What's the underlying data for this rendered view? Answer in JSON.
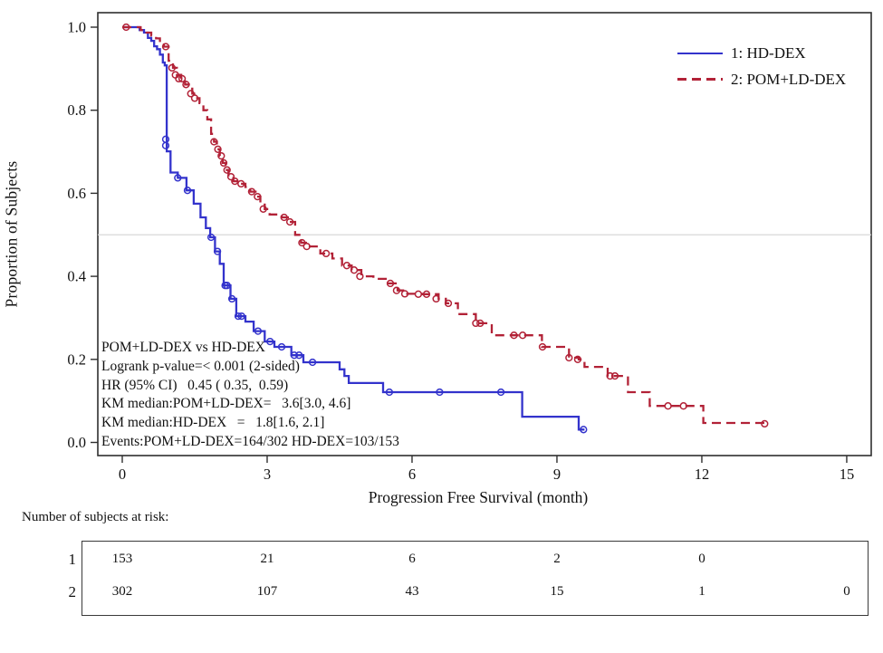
{
  "chart_data": {
    "type": "line",
    "subtype": "kaplan-meier-step",
    "title": "",
    "xlabel": "Progression Free Survival (month)",
    "ylabel": "Proportion of Subjects",
    "xlim": [
      -0.5,
      15.5
    ],
    "ylim": [
      0.0,
      1.0
    ],
    "xticks": [
      "0",
      "3",
      "6",
      "9",
      "12",
      "15"
    ],
    "xtick_values": [
      0,
      3,
      6,
      9,
      12,
      15
    ],
    "yticks": [
      "0.0",
      "0.2",
      "0.4",
      "0.6",
      "0.8",
      "1.0"
    ],
    "ytick_values": [
      0.0,
      0.2,
      0.4,
      0.6,
      0.8,
      1.0
    ],
    "reference_line_y": 0.5,
    "grid": "off",
    "legend_position": "top-right-inside",
    "series": [
      {
        "name": "1: HD-DEX",
        "color": "#3333cc",
        "dash": "solid",
        "end_t": 9.57,
        "steps": [
          [
            0,
            1.0
          ],
          [
            0.3,
            1.0
          ],
          [
            0.36,
            0.993
          ],
          [
            0.45,
            0.987
          ],
          [
            0.53,
            0.974
          ],
          [
            0.6,
            0.967
          ],
          [
            0.66,
            0.954
          ],
          [
            0.72,
            0.947
          ],
          [
            0.78,
            0.934
          ],
          [
            0.84,
            0.915
          ],
          [
            0.88,
            0.908
          ],
          [
            0.92,
            0.701
          ],
          [
            1.0,
            0.65
          ],
          [
            1.15,
            0.637
          ],
          [
            1.33,
            0.607
          ],
          [
            1.48,
            0.575
          ],
          [
            1.62,
            0.542
          ],
          [
            1.73,
            0.516
          ],
          [
            1.82,
            0.494
          ],
          [
            1.92,
            0.46
          ],
          [
            2.02,
            0.43
          ],
          [
            2.1,
            0.378
          ],
          [
            2.24,
            0.346
          ],
          [
            2.36,
            0.304
          ],
          [
            2.55,
            0.291
          ],
          [
            2.72,
            0.268
          ],
          [
            2.95,
            0.243
          ],
          [
            3.15,
            0.23
          ],
          [
            3.5,
            0.21
          ],
          [
            3.75,
            0.193
          ],
          [
            4.5,
            0.176
          ],
          [
            4.6,
            0.16
          ],
          [
            4.69,
            0.143
          ],
          [
            5.4,
            0.121
          ],
          [
            8.28,
            0.062
          ],
          [
            9.45,
            0.031
          ]
        ],
        "censors": [
          [
            0.9,
            0.73
          ],
          [
            0.9,
            0.715
          ],
          [
            1.15,
            0.637
          ],
          [
            1.35,
            0.607
          ],
          [
            1.84,
            0.494
          ],
          [
            1.97,
            0.46
          ],
          [
            2.13,
            0.378
          ],
          [
            2.17,
            0.378
          ],
          [
            2.27,
            0.346
          ],
          [
            2.4,
            0.304
          ],
          [
            2.47,
            0.304
          ],
          [
            2.81,
            0.268
          ],
          [
            3.06,
            0.243
          ],
          [
            3.3,
            0.23
          ],
          [
            3.56,
            0.21
          ],
          [
            3.66,
            0.21
          ],
          [
            3.94,
            0.193
          ],
          [
            5.53,
            0.121
          ],
          [
            6.57,
            0.121
          ],
          [
            7.84,
            0.121
          ],
          [
            9.55,
            0.031
          ]
        ]
      },
      {
        "name": "2: POM+LD-DEX",
        "color": "#b22237",
        "dash": "dashed",
        "end_t": 13.3,
        "steps": [
          [
            0,
            1.0
          ],
          [
            0.32,
            1.0
          ],
          [
            0.38,
            0.993
          ],
          [
            0.5,
            0.987
          ],
          [
            0.6,
            0.98
          ],
          [
            0.7,
            0.973
          ],
          [
            0.78,
            0.963
          ],
          [
            0.86,
            0.953
          ],
          [
            0.96,
            0.919
          ],
          [
            1.05,
            0.902
          ],
          [
            1.13,
            0.885
          ],
          [
            1.22,
            0.876
          ],
          [
            1.3,
            0.862
          ],
          [
            1.38,
            0.852
          ],
          [
            1.45,
            0.84
          ],
          [
            1.52,
            0.829
          ],
          [
            1.6,
            0.817
          ],
          [
            1.68,
            0.8
          ],
          [
            1.76,
            0.778
          ],
          [
            1.84,
            0.743
          ],
          [
            1.9,
            0.724
          ],
          [
            1.96,
            0.706
          ],
          [
            2.02,
            0.69
          ],
          [
            2.08,
            0.673
          ],
          [
            2.14,
            0.656
          ],
          [
            2.2,
            0.64
          ],
          [
            2.3,
            0.629
          ],
          [
            2.42,
            0.623
          ],
          [
            2.55,
            0.615
          ],
          [
            2.65,
            0.604
          ],
          [
            2.76,
            0.592
          ],
          [
            2.86,
            0.576
          ],
          [
            2.95,
            0.562
          ],
          [
            3.05,
            0.549
          ],
          [
            3.3,
            0.542
          ],
          [
            3.45,
            0.531
          ],
          [
            3.58,
            0.5
          ],
          [
            3.7,
            0.481
          ],
          [
            3.85,
            0.472
          ],
          [
            4.1,
            0.455
          ],
          [
            4.35,
            0.443
          ],
          [
            4.55,
            0.426
          ],
          [
            4.75,
            0.415
          ],
          [
            4.95,
            0.4
          ],
          [
            5.2,
            0.394
          ],
          [
            5.5,
            0.383
          ],
          [
            5.7,
            0.366
          ],
          [
            5.9,
            0.358
          ],
          [
            6.2,
            0.357
          ],
          [
            6.55,
            0.346
          ],
          [
            6.7,
            0.335
          ],
          [
            6.95,
            0.309
          ],
          [
            7.32,
            0.287
          ],
          [
            7.65,
            0.258
          ],
          [
            8.69,
            0.23
          ],
          [
            9.25,
            0.204
          ],
          [
            9.45,
            0.2
          ],
          [
            9.57,
            0.182
          ],
          [
            10.05,
            0.16
          ],
          [
            10.47,
            0.121
          ],
          [
            10.92,
            0.088
          ],
          [
            12.03,
            0.047
          ]
        ],
        "censors": [
          [
            0.08,
            1.0
          ],
          [
            0.9,
            0.953
          ],
          [
            1.03,
            0.902
          ],
          [
            1.1,
            0.885
          ],
          [
            1.17,
            0.876
          ],
          [
            1.24,
            0.876
          ],
          [
            1.32,
            0.862
          ],
          [
            1.42,
            0.84
          ],
          [
            1.5,
            0.829
          ],
          [
            1.9,
            0.724
          ],
          [
            1.98,
            0.706
          ],
          [
            2.05,
            0.69
          ],
          [
            2.1,
            0.673
          ],
          [
            2.17,
            0.656
          ],
          [
            2.25,
            0.64
          ],
          [
            2.33,
            0.629
          ],
          [
            2.46,
            0.623
          ],
          [
            2.68,
            0.604
          ],
          [
            2.8,
            0.592
          ],
          [
            2.92,
            0.562
          ],
          [
            3.35,
            0.542
          ],
          [
            3.47,
            0.531
          ],
          [
            3.72,
            0.481
          ],
          [
            3.82,
            0.472
          ],
          [
            4.22,
            0.455
          ],
          [
            4.65,
            0.426
          ],
          [
            4.8,
            0.415
          ],
          [
            4.92,
            0.4
          ],
          [
            5.55,
            0.383
          ],
          [
            5.68,
            0.366
          ],
          [
            5.85,
            0.358
          ],
          [
            6.13,
            0.357
          ],
          [
            6.3,
            0.357
          ],
          [
            6.5,
            0.346
          ],
          [
            6.75,
            0.335
          ],
          [
            7.32,
            0.287
          ],
          [
            7.41,
            0.287
          ],
          [
            8.11,
            0.258
          ],
          [
            8.29,
            0.258
          ],
          [
            8.7,
            0.23
          ],
          [
            9.25,
            0.204
          ],
          [
            9.43,
            0.2
          ],
          [
            10.1,
            0.16
          ],
          [
            10.2,
            0.16
          ],
          [
            11.3,
            0.088
          ],
          [
            11.62,
            0.088
          ],
          [
            13.3,
            0.045
          ]
        ]
      }
    ],
    "annotation_lines": [
      "POM+LD-DEX vs HD-DEX",
      "Logrank p-value=< 0.001 (2-sided)",
      "HR (95% CI)   0.45 ( 0.35,  0.59)",
      "KM median:POM+LD-DEX=   3.6[3.0, 4.6]",
      "KM median:HD-DEX   =   1.8[1.6, 2.1]",
      "Events:POM+LD-DEX=164/302 HD-DEX=103/153"
    ],
    "at_risk": {
      "header": "Number of subjects at risk:",
      "rows": [
        {
          "label": "1",
          "values": [
            [
              0,
              "153"
            ],
            [
              3,
              "21"
            ],
            [
              6,
              "6"
            ],
            [
              9,
              "2"
            ],
            [
              12,
              "0"
            ]
          ]
        },
        {
          "label": "2",
          "values": [
            [
              0,
              "302"
            ],
            [
              3,
              "107"
            ],
            [
              6,
              "43"
            ],
            [
              9,
              "15"
            ],
            [
              12,
              "1"
            ],
            [
              15,
              "0"
            ]
          ]
        }
      ]
    },
    "colors": {
      "hd_dex": "#3333cc",
      "pom_ld_dex": "#b22237",
      "reference_line": "#d9d9d9",
      "frame": "#2f2f2f"
    }
  }
}
